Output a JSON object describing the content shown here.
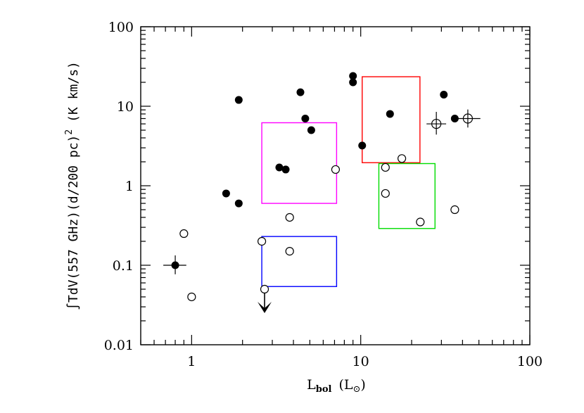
{
  "chart_data": {
    "type": "scatter",
    "title": "",
    "xlabel": "L",
    "xlabel_sub": "bol",
    "xlabel_unit_open": "(L",
    "xlabel_unit_sub": "⊙",
    "xlabel_unit_close": ")",
    "ylabel": "∫TdV(557 GHz)(d/200 pc)",
    "ylabel_sup": "2",
    "ylabel_unit": "(K km/s)",
    "x_scale": "log",
    "y_scale": "log",
    "xlim": [
      0.5,
      100
    ],
    "ylim": [
      0.01,
      100
    ],
    "x_ticks": [
      {
        "value": 1,
        "label": "1"
      },
      {
        "value": 10,
        "label": "10"
      },
      {
        "value": 100,
        "label": "100"
      }
    ],
    "y_ticks": [
      {
        "value": 0.01,
        "label": "0.01"
      },
      {
        "value": 0.1,
        "label": "0.1"
      },
      {
        "value": 1,
        "label": "1"
      },
      {
        "value": 10,
        "label": "10"
      },
      {
        "value": 100,
        "label": "100"
      }
    ],
    "grid": false,
    "series": [
      {
        "marker": "filled-circle",
        "points": [
          {
            "x": 1.6,
            "y": 0.8
          },
          {
            "x": 1.9,
            "y": 0.6
          },
          {
            "x": 1.9,
            "y": 12
          },
          {
            "x": 3.3,
            "y": 1.7
          },
          {
            "x": 3.6,
            "y": 1.6
          },
          {
            "x": 4.4,
            "y": 15
          },
          {
            "x": 4.7,
            "y": 7
          },
          {
            "x": 5.1,
            "y": 5
          },
          {
            "x": 9.0,
            "y": 24
          },
          {
            "x": 9.0,
            "y": 20
          },
          {
            "x": 10.2,
            "y": 3.2
          },
          {
            "x": 14.9,
            "y": 8
          },
          {
            "x": 31,
            "y": 14
          },
          {
            "x": 36,
            "y": 7
          }
        ]
      },
      {
        "marker": "open-circle",
        "points": [
          {
            "x": 0.9,
            "y": 0.25
          },
          {
            "x": 1.0,
            "y": 0.04
          },
          {
            "x": 2.6,
            "y": 0.2
          },
          {
            "x": 3.8,
            "y": 0.15
          },
          {
            "x": 3.8,
            "y": 0.4
          },
          {
            "x": 7.1,
            "y": 1.6
          },
          {
            "x": 14,
            "y": 1.7
          },
          {
            "x": 14,
            "y": 0.8
          },
          {
            "x": 17.5,
            "y": 2.2
          },
          {
            "x": 22.5,
            "y": 0.35
          },
          {
            "x": 36,
            "y": 0.5
          }
        ]
      },
      {
        "marker": "filled-circle-errorbar",
        "points": [
          {
            "x": 0.8,
            "y": 0.1,
            "xerr": [
              0.68,
              0.93
            ],
            "yerr": [
              0.077,
              0.133
            ]
          }
        ]
      },
      {
        "marker": "open-circle-crosshair",
        "points": [
          {
            "x": 28,
            "y": 6,
            "xerr": [
              24.5,
              32
            ],
            "yerr": [
              4.4,
              8.5
            ]
          },
          {
            "x": 43,
            "y": 7,
            "xerr": [
              36,
              51
            ],
            "yerr": [
              5.4,
              9.1
            ]
          }
        ]
      },
      {
        "marker": "upper-limit",
        "points": [
          {
            "x": 2.7,
            "y": 0.05
          }
        ]
      }
    ],
    "boxes": [
      {
        "color": "#ff00ff",
        "x": [
          2.6,
          7.2
        ],
        "y": [
          0.6,
          6.2
        ]
      },
      {
        "color": "#0000ff",
        "x": [
          2.6,
          7.2
        ],
        "y": [
          0.054,
          0.23
        ]
      },
      {
        "color": "#ff0000",
        "x": [
          10.2,
          22.4
        ],
        "y": [
          1.95,
          23.5
        ]
      },
      {
        "color": "#00dd00",
        "x": [
          12.8,
          27.5
        ],
        "y": [
          0.29,
          1.9
        ]
      }
    ]
  }
}
